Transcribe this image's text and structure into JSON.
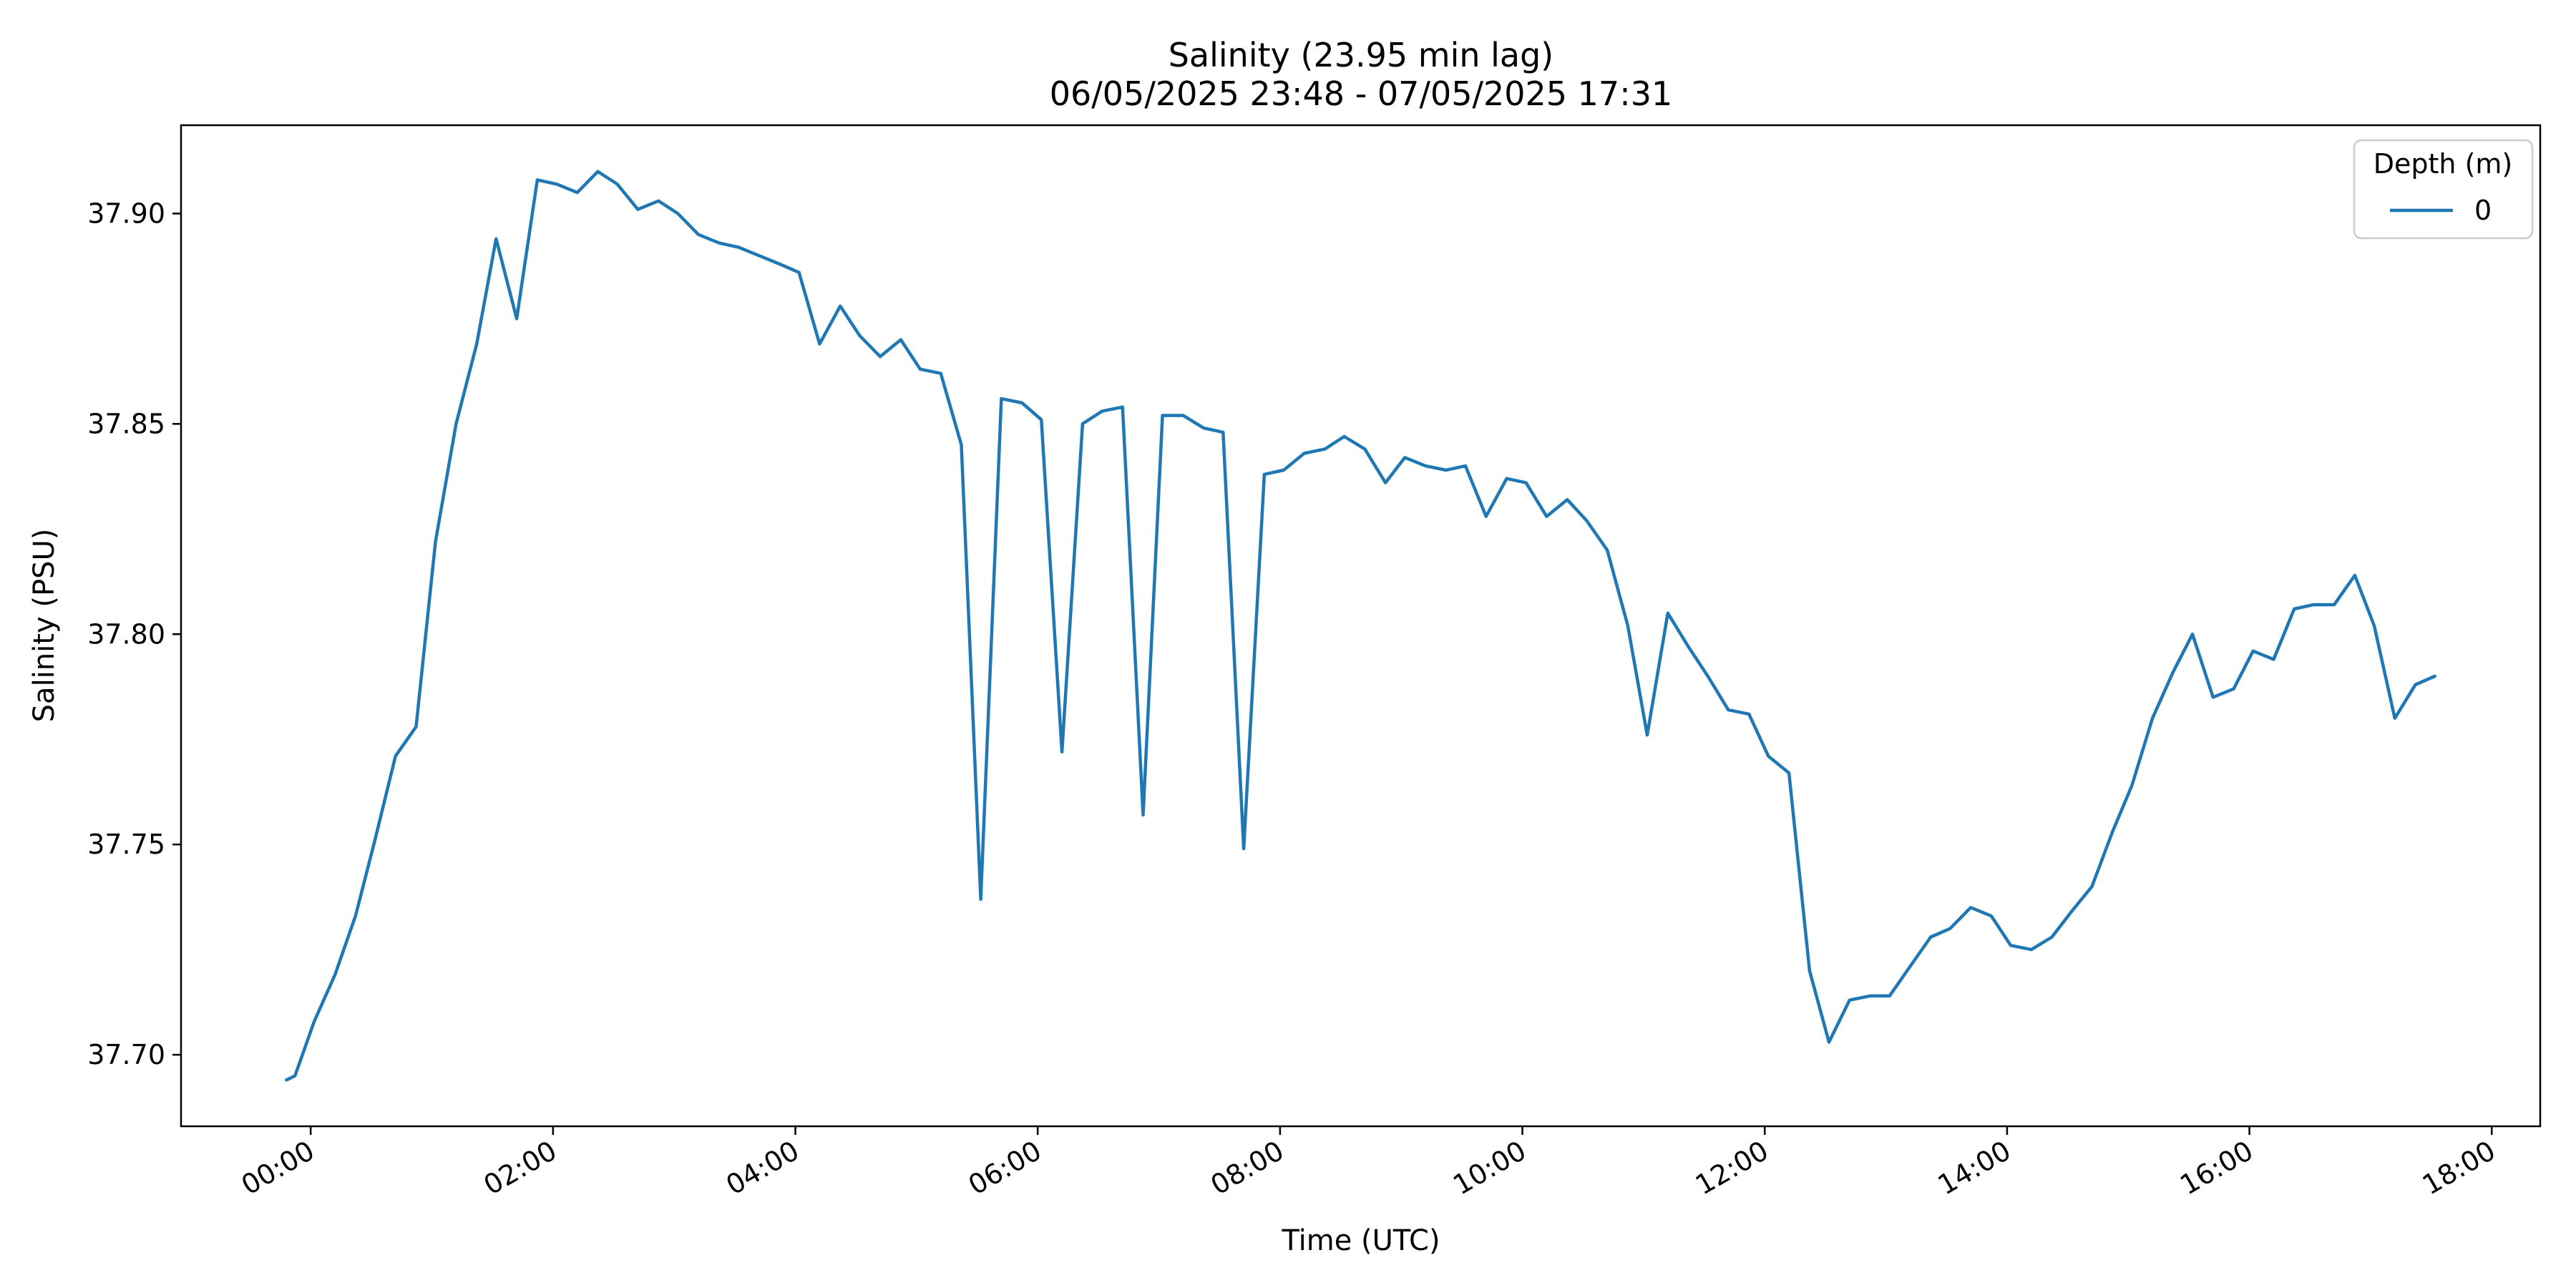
{
  "chart_data": {
    "type": "line",
    "title": "Salinity (23.95 min lag)",
    "subtitle": "06/05/2025 23:48 - 07/05/2025 17:31",
    "xlabel": "Time (UTC)",
    "ylabel": "Salinity (PSU)",
    "x_unit": "hours after 07/05/2025 00:00 UTC",
    "xlim": [
      -1.07,
      18.4
    ],
    "ylim": [
      37.683,
      37.921
    ],
    "x_ticks": [
      {
        "value": 0,
        "label": "00:00"
      },
      {
        "value": 2,
        "label": "02:00"
      },
      {
        "value": 4,
        "label": "04:00"
      },
      {
        "value": 6,
        "label": "06:00"
      },
      {
        "value": 8,
        "label": "08:00"
      },
      {
        "value": 10,
        "label": "10:00"
      },
      {
        "value": 12,
        "label": "12:00"
      },
      {
        "value": 14,
        "label": "14:00"
      },
      {
        "value": 16,
        "label": "16:00"
      },
      {
        "value": 18,
        "label": "18:00"
      }
    ],
    "y_ticks": [
      {
        "value": 37.7,
        "label": "37.70"
      },
      {
        "value": 37.75,
        "label": "37.75"
      },
      {
        "value": 37.8,
        "label": "37.80"
      },
      {
        "value": 37.85,
        "label": "37.85"
      },
      {
        "value": 37.9,
        "label": "37.90"
      }
    ],
    "grid": false,
    "legend": {
      "title": "Depth (m)",
      "position": "top-right"
    },
    "series": [
      {
        "name": "0",
        "color": "#1f77b4",
        "x": [
          -0.2,
          -0.13,
          0.03,
          0.2,
          0.37,
          0.53,
          0.7,
          0.87,
          1.03,
          1.2,
          1.37,
          1.53,
          1.7,
          1.87,
          2.03,
          2.2,
          2.37,
          2.53,
          2.7,
          2.87,
          3.03,
          3.2,
          3.37,
          3.53,
          3.7,
          3.87,
          4.03,
          4.2,
          4.37,
          4.53,
          4.7,
          4.87,
          5.03,
          5.2,
          5.37,
          5.53,
          5.7,
          5.87,
          6.03,
          6.2,
          6.37,
          6.53,
          6.7,
          6.87,
          7.03,
          7.2,
          7.37,
          7.53,
          7.7,
          7.87,
          8.03,
          8.2,
          8.37,
          8.53,
          8.7,
          8.87,
          9.03,
          9.2,
          9.37,
          9.53,
          9.7,
          9.87,
          10.03,
          10.2,
          10.37,
          10.53,
          10.7,
          10.87,
          11.03,
          11.2,
          11.37,
          11.53,
          11.7,
          11.87,
          12.03,
          12.2,
          12.37,
          12.53,
          12.7,
          12.87,
          13.03,
          13.2,
          13.37,
          13.53,
          13.7,
          13.87,
          14.03,
          14.2,
          14.37,
          14.53,
          14.7,
          14.87,
          15.03,
          15.2,
          15.37,
          15.53,
          15.7,
          15.87,
          16.03,
          16.2,
          16.37,
          16.53,
          16.7,
          16.87,
          17.03,
          17.2,
          17.37,
          17.53
        ],
        "y": [
          37.694,
          37.695,
          37.708,
          37.719,
          37.733,
          37.751,
          37.771,
          37.778,
          37.822,
          37.85,
          37.869,
          37.894,
          37.875,
          37.908,
          37.907,
          37.905,
          37.91,
          37.907,
          37.901,
          37.903,
          37.9,
          37.895,
          37.893,
          37.892,
          37.89,
          37.888,
          37.886,
          37.869,
          37.878,
          37.871,
          37.866,
          37.87,
          37.863,
          37.862,
          37.845,
          37.737,
          37.856,
          37.855,
          37.851,
          37.772,
          37.85,
          37.853,
          37.854,
          37.757,
          37.852,
          37.852,
          37.849,
          37.848,
          37.749,
          37.838,
          37.839,
          37.843,
          37.844,
          37.847,
          37.844,
          37.836,
          37.842,
          37.84,
          37.839,
          37.84,
          37.828,
          37.837,
          37.836,
          37.828,
          37.832,
          37.827,
          37.82,
          37.802,
          37.776,
          37.805,
          37.797,
          37.79,
          37.782,
          37.781,
          37.771,
          37.767,
          37.72,
          37.703,
          37.713,
          37.714,
          37.714,
          37.721,
          37.728,
          37.73,
          37.735,
          37.733,
          37.726,
          37.725,
          37.728,
          37.734,
          37.74,
          37.753,
          37.764,
          37.78,
          37.791,
          37.8,
          37.785,
          37.787,
          37.796,
          37.794,
          37.806,
          37.807,
          37.807,
          37.814,
          37.802,
          37.78,
          37.788,
          37.79
        ]
      }
    ]
  }
}
